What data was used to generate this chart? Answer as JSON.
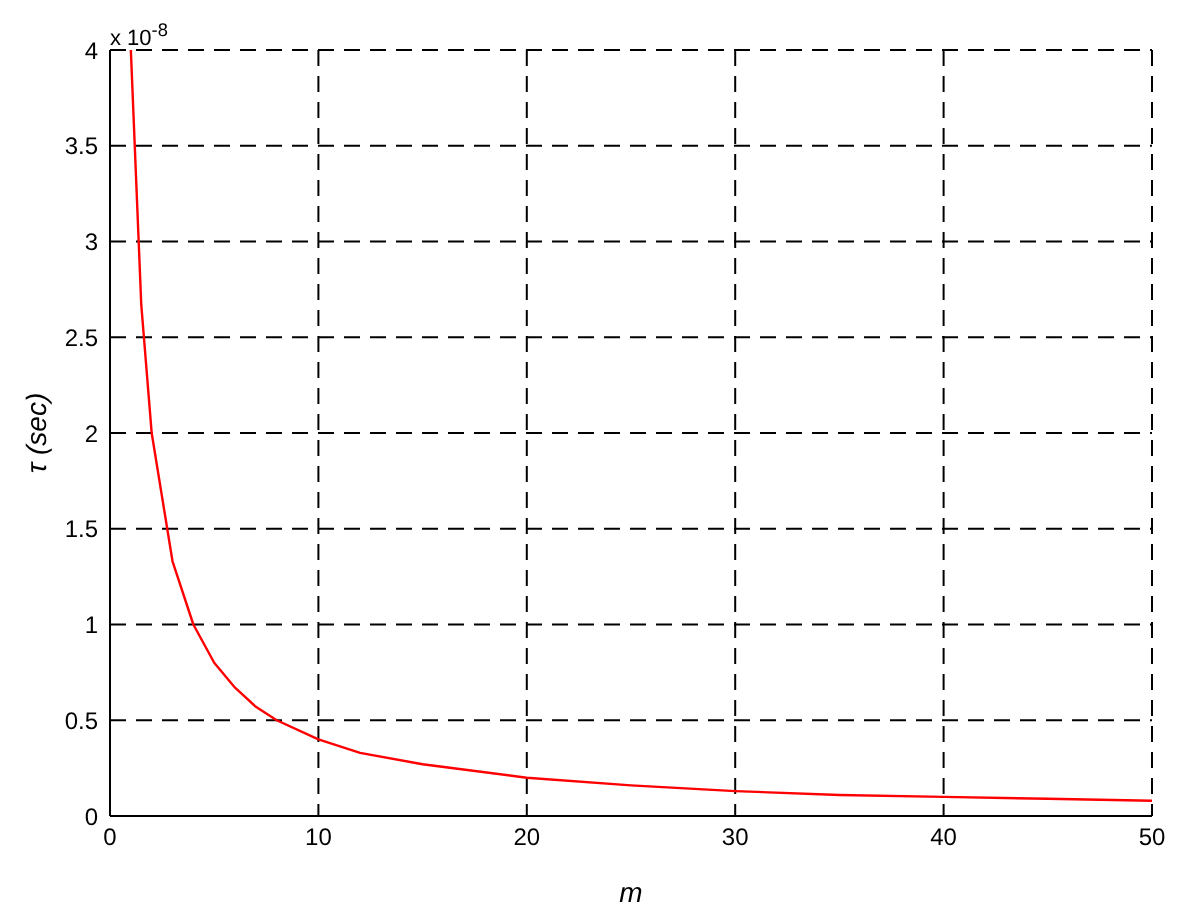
{
  "chart_data": {
    "type": "line",
    "xlabel": "m",
    "ylabel": "τ (sec)",
    "annotations": [
      "x 10$^{-8}$"
    ],
    "x": [
      1,
      1.5,
      2,
      3,
      4,
      5,
      6,
      7,
      8,
      10,
      12,
      15,
      20,
      25,
      30,
      35,
      40,
      45,
      50
    ],
    "series": [
      {
        "color": "#ff0000",
        "values": [
          4,
          2.67,
          2,
          1.33,
          1,
          0.8,
          0.67,
          0.57,
          0.5,
          0.4,
          0.33,
          0.27,
          0.2,
          0.16,
          0.13,
          0.11,
          0.1,
          0.09,
          0.08
        ]
      }
    ],
    "xlim": [
      0,
      50
    ],
    "xticks": [
      0,
      10,
      20,
      30,
      40,
      50
    ],
    "ylim": [
      0,
      4
    ],
    "yticks": [
      0,
      0.5,
      1,
      1.5,
      2,
      2.5,
      3,
      3.5,
      4
    ],
    "grid": true,
    "line_style": "solid",
    "marker": "none",
    "legend": false
  }
}
